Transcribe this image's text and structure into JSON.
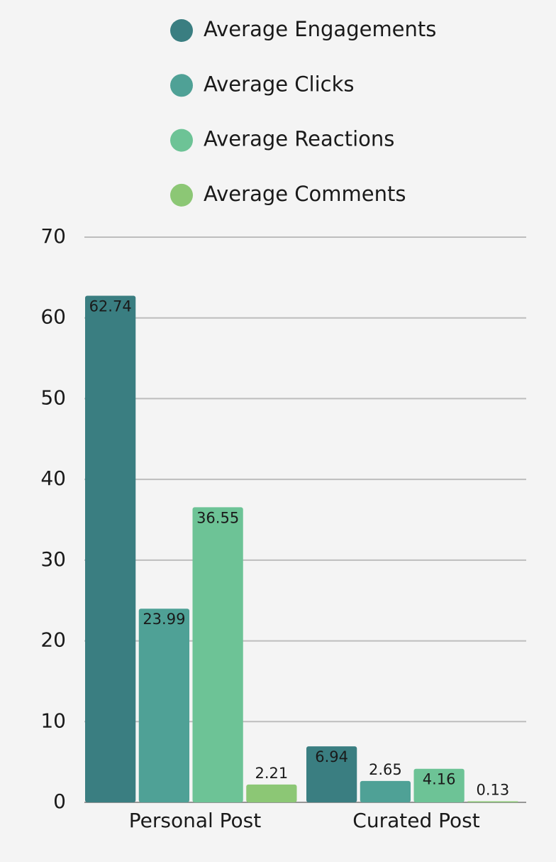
{
  "chart_data": {
    "type": "bar",
    "categories": [
      "Personal Post",
      "Curated Post"
    ],
    "series": [
      {
        "name": "Average Engagements",
        "color": "#3a7e81",
        "values": [
          62.74,
          6.94
        ]
      },
      {
        "name": "Average Clicks",
        "color": "#4fa196",
        "values": [
          23.99,
          2.65
        ]
      },
      {
        "name": "Average Reactions",
        "color": "#6dc396",
        "values": [
          36.55,
          4.16
        ]
      },
      {
        "name": "Average Comments",
        "color": "#8cc775",
        "values": [
          2.21,
          0.13
        ]
      }
    ],
    "ylim": [
      0,
      70
    ],
    "yticks": [
      0,
      10,
      20,
      30,
      40,
      50,
      60,
      70
    ],
    "grid": true,
    "legend": "top"
  }
}
